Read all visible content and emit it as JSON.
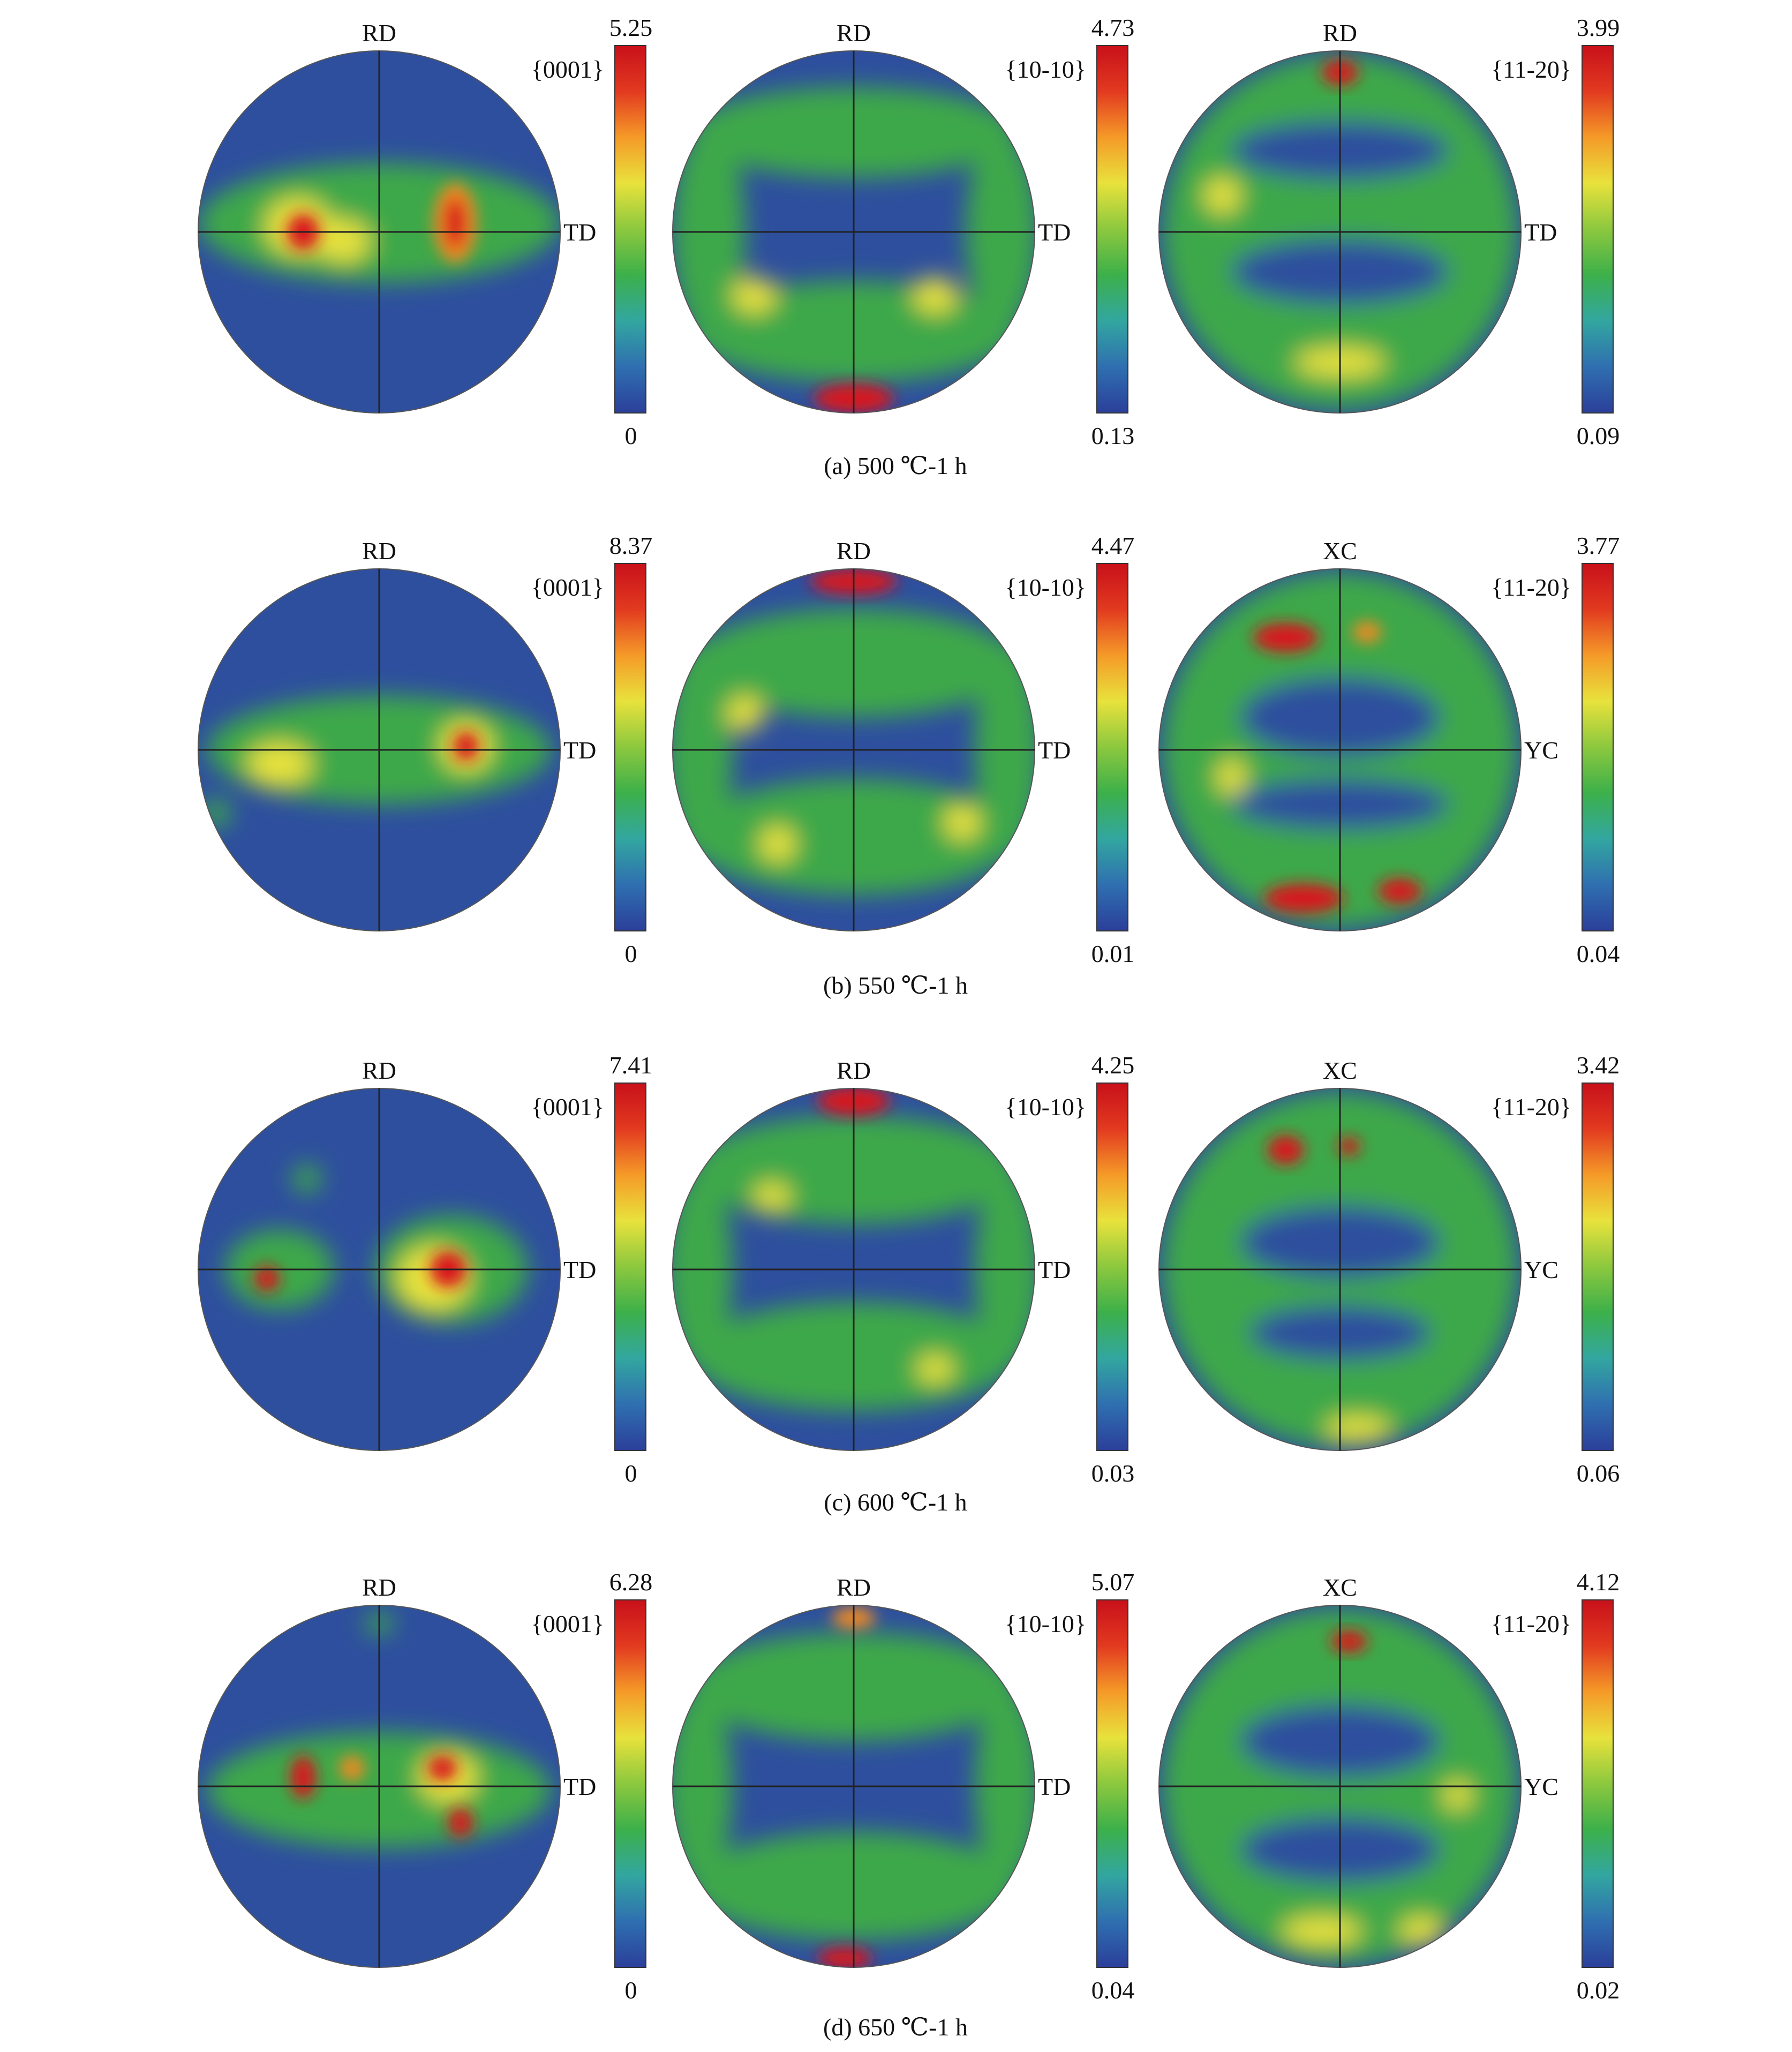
{
  "figure": {
    "rows": [
      {
        "caption": "(a) 500 ℃-1 h",
        "plots": [
          {
            "top": "RD",
            "side": "TD",
            "family": "{0001}",
            "max": "5.25",
            "min": "0"
          },
          {
            "top": "RD",
            "side": "TD",
            "family": "{10-10}",
            "max": "4.73",
            "min": "0.13"
          },
          {
            "top": "RD",
            "side": "TD",
            "family": "{11-20}",
            "max": "3.99",
            "min": "0.09"
          }
        ]
      },
      {
        "caption": "(b) 550 ℃-1 h",
        "plots": [
          {
            "top": "RD",
            "side": "TD",
            "family": "{0001}",
            "max": "8.37",
            "min": "0"
          },
          {
            "top": "RD",
            "side": "TD",
            "family": "{10-10}",
            "max": "4.47",
            "min": "0.01"
          },
          {
            "top": "XC",
            "side": "YC",
            "family": "{11-20}",
            "max": "3.77",
            "min": "0.04"
          }
        ]
      },
      {
        "caption": "(c) 600 ℃-1 h",
        "plots": [
          {
            "top": "RD",
            "side": "TD",
            "family": "{0001}",
            "max": "7.41",
            "min": "0"
          },
          {
            "top": "RD",
            "side": "TD",
            "family": "{10-10}",
            "max": "4.25",
            "min": "0.03"
          },
          {
            "top": "XC",
            "side": "YC",
            "family": "{11-20}",
            "max": "3.42",
            "min": "0.06"
          }
        ]
      },
      {
        "caption": "(d) 650 ℃-1 h",
        "plots": [
          {
            "top": "RD",
            "side": "TD",
            "family": "{0001}",
            "max": "6.28",
            "min": "0"
          },
          {
            "top": "RD",
            "side": "TD",
            "family": "{10-10}",
            "max": "5.07",
            "min": "0.04"
          },
          {
            "top": "XC",
            "side": "YC",
            "family": "{11-20}",
            "max": "4.12",
            "min": "0.02"
          }
        ]
      }
    ],
    "colors": {
      "low": "#2e4f9e",
      "green": "#3ea84a",
      "yellow": "#e8e23c",
      "orange": "#f08a24",
      "high": "#d8141e",
      "line": "#222222"
    },
    "colormap_stops": [
      "#2b3f9a",
      "#2f6fb0",
      "#32a6a0",
      "#3cb04a",
      "#8cc83e",
      "#e8e23c",
      "#f59a28",
      "#e23a20",
      "#c8101a"
    ]
  }
}
